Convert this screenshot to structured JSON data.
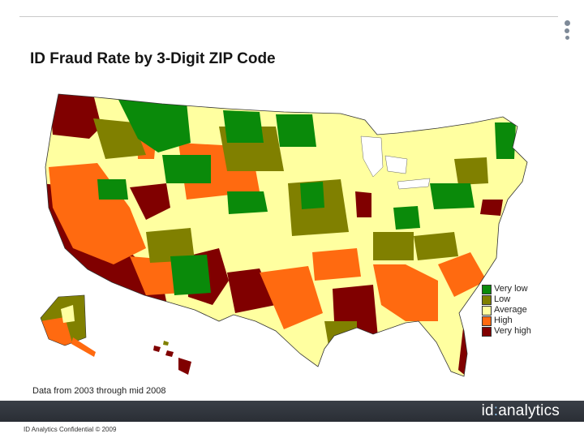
{
  "title": "ID Fraud Rate by 3-Digit ZIP Code",
  "source_note": "Data from 2003 through mid 2008",
  "footer": {
    "brand_pre": "id",
    "brand_sep": ":",
    "brand_post": "analytics",
    "confidential": "ID Analytics Confidential © 2009"
  },
  "legend": [
    {
      "label": "Very low",
      "color": "#0a8a0a"
    },
    {
      "label": "Low",
      "color": "#808000"
    },
    {
      "label": "Average",
      "color": "#ffffa0"
    },
    {
      "label": "High",
      "color": "#ff6a10"
    },
    {
      "label": "Very high",
      "color": "#800000"
    }
  ],
  "map": {
    "type": "choropleth",
    "region": "United States",
    "unit": "3-digit ZIP code",
    "categories": [
      "Very low",
      "Low",
      "Average",
      "High",
      "Very high"
    ]
  }
}
